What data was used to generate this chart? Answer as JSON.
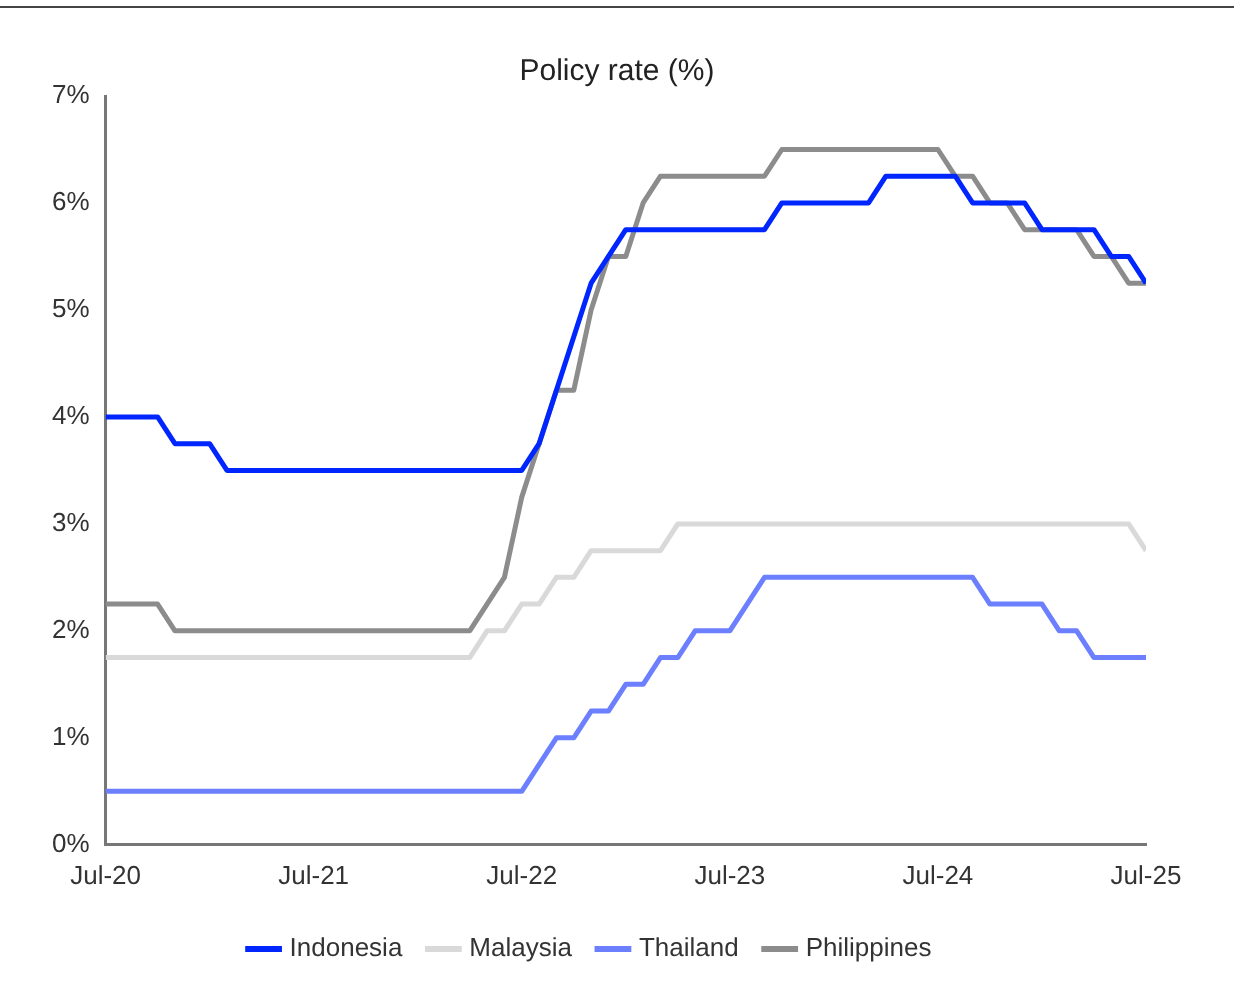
{
  "chart_data": {
    "type": "line",
    "title": "Policy rate (%)",
    "xlim": [
      "2020-07",
      "2025-07"
    ],
    "xticks": [
      {
        "value": "2020-07",
        "label": "Jul-20"
      },
      {
        "value": "2021-07",
        "label": "Jul-21"
      },
      {
        "value": "2022-07",
        "label": "Jul-22"
      },
      {
        "value": "2023-07",
        "label": "Jul-23"
      },
      {
        "value": "2024-07",
        "label": "Jul-24"
      },
      {
        "value": "2025-07",
        "label": "Jul-25"
      }
    ],
    "ylim": [
      0,
      7
    ],
    "yticks": [
      {
        "value": 0,
        "label": "0%"
      },
      {
        "value": 1,
        "label": "1%"
      },
      {
        "value": 2,
        "label": "2%"
      },
      {
        "value": 3,
        "label": "3%"
      },
      {
        "value": 4,
        "label": "4%"
      },
      {
        "value": 5,
        "label": "5%"
      },
      {
        "value": 6,
        "label": "6%"
      },
      {
        "value": 7,
        "label": "7%"
      }
    ],
    "grid": false,
    "legend": "bottom",
    "marker": "none",
    "line_style": "solid",
    "series": [
      {
        "name": "Indonesia",
        "color": "#0026ff",
        "x": [
          "2020-07",
          "2020-10",
          "2020-11",
          "2021-01",
          "2021-02",
          "2022-07",
          "2022-08",
          "2022-09",
          "2022-10",
          "2022-11",
          "2022-12",
          "2023-01",
          "2023-09",
          "2023-10",
          "2024-03",
          "2024-04",
          "2024-08",
          "2024-09",
          "2024-12",
          "2025-01",
          "2025-04",
          "2025-05",
          "2025-06",
          "2025-07"
        ],
        "values": [
          4.0,
          4.0,
          3.75,
          3.75,
          3.5,
          3.5,
          3.75,
          4.25,
          4.75,
          5.25,
          5.5,
          5.75,
          5.75,
          6.0,
          6.0,
          6.25,
          6.25,
          6.0,
          6.0,
          5.75,
          5.75,
          5.5,
          5.5,
          5.25
        ]
      },
      {
        "name": "Malaysia",
        "color": "#d9d9d9",
        "x": [
          "2020-07",
          "2022-04",
          "2022-05",
          "2022-06",
          "2022-07",
          "2022-08",
          "2022-09",
          "2022-10",
          "2022-11",
          "2023-03",
          "2023-04",
          "2025-06",
          "2025-07"
        ],
        "values": [
          1.75,
          1.75,
          2.0,
          2.0,
          2.25,
          2.25,
          2.5,
          2.5,
          2.75,
          2.75,
          3.0,
          3.0,
          2.75
        ]
      },
      {
        "name": "Thailand",
        "color": "#6b7fff",
        "x": [
          "2020-07",
          "2022-07",
          "2022-09",
          "2022-10",
          "2022-11",
          "2022-12",
          "2023-01",
          "2023-02",
          "2023-03",
          "2023-04",
          "2023-05",
          "2023-07",
          "2023-09",
          "2024-09",
          "2024-10",
          "2025-01",
          "2025-02",
          "2025-03",
          "2025-04",
          "2025-07"
        ],
        "values": [
          0.5,
          0.5,
          1.0,
          1.0,
          1.25,
          1.25,
          1.5,
          1.5,
          1.75,
          1.75,
          2.0,
          2.0,
          2.5,
          2.5,
          2.25,
          2.25,
          2.0,
          2.0,
          1.75,
          1.75
        ]
      },
      {
        "name": "Philippines",
        "color": "#8c8c8c",
        "x": [
          "2020-07",
          "2020-10",
          "2020-11",
          "2022-04",
          "2022-06",
          "2022-07",
          "2022-08",
          "2022-09",
          "2022-10",
          "2022-11",
          "2022-12",
          "2023-01",
          "2023-02",
          "2023-03",
          "2023-09",
          "2023-10",
          "2024-07",
          "2024-08",
          "2024-09",
          "2024-10",
          "2024-11",
          "2024-12",
          "2025-03",
          "2025-04",
          "2025-05",
          "2025-06",
          "2025-07"
        ],
        "values": [
          2.25,
          2.25,
          2.0,
          2.0,
          2.5,
          3.25,
          3.75,
          4.25,
          4.25,
          5.0,
          5.5,
          5.5,
          6.0,
          6.25,
          6.25,
          6.5,
          6.5,
          6.25,
          6.25,
          6.0,
          6.0,
          5.75,
          5.75,
          5.5,
          5.5,
          5.25,
          5.25
        ]
      }
    ]
  }
}
